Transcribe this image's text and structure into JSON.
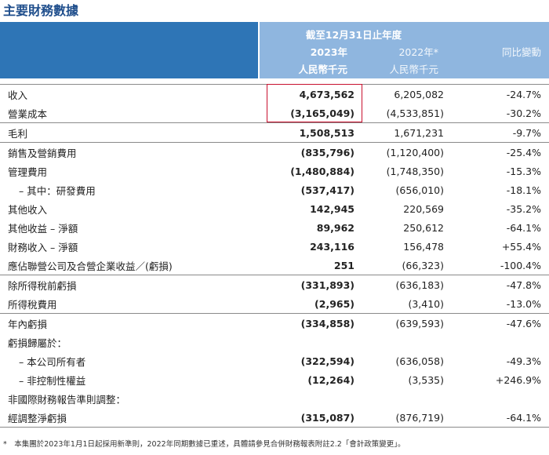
{
  "title": "主要財務數據",
  "header": {
    "period": "截至12月31日止年度",
    "columns": [
      {
        "year": "2023年",
        "unit": "人民幣千元"
      },
      {
        "year": "2022年*",
        "unit": "人民幣千元"
      }
    ],
    "change": "同比變動"
  },
  "sections": [
    [
      [
        "收入",
        "4,673,562",
        "6,205,082",
        "-24.7%"
      ],
      [
        "營業成本",
        "(3,165,049)",
        "(4,533,851)",
        "-30.2%"
      ]
    ],
    [
      [
        "毛利",
        "1,508,513",
        "1,671,231",
        "-9.7%"
      ]
    ],
    [
      [
        "銷售及營銷費用",
        "(835,796)",
        "(1,120,400)",
        "-25.4%"
      ],
      [
        "管理費用",
        "(1,480,884)",
        "(1,748,350)",
        "-15.3%"
      ],
      [
        "– 其中：研發費用",
        "(537,417)",
        "(656,010)",
        "-18.1%"
      ],
      [
        "其他收入",
        "142,945",
        "220,569",
        "-35.2%"
      ],
      [
        "其他收益 – 淨額",
        "89,962",
        "250,612",
        "-64.1%"
      ],
      [
        "財務收入 – 淨額",
        "243,116",
        "156,478",
        "+55.4%"
      ],
      [
        "應佔聯營公司及合營企業收益／(虧損)",
        "251",
        "(66,323)",
        "-100.4%"
      ]
    ],
    [
      [
        "除所得稅前虧損",
        "(331,893)",
        "(636,183)",
        "-47.8%"
      ],
      [
        "所得稅費用",
        "(2,965)",
        "(3,410)",
        "-13.0%"
      ]
    ],
    [
      [
        "年內虧損",
        "(334,858)",
        "(639,593)",
        "-47.6%"
      ],
      [
        "虧損歸屬於：",
        null,
        null,
        null
      ],
      [
        "– 本公司所有者",
        "(322,594)",
        "(636,058)",
        "-49.3%"
      ],
      [
        "– 非控制性權益",
        "(12,264)",
        "(3,535)",
        "+246.9%"
      ],
      [
        "非國際財務報告準則調整：",
        null,
        null,
        null
      ],
      [
        "經調整淨虧損",
        "(315,087)",
        "(876,719)",
        "-64.1%"
      ]
    ]
  ],
  "footnote": "*　本集團於2023年1月1日起採用新準則，2022年同期數據已重述，具體請參見合併財務報表附註2.2「會計政策變更」。"
}
